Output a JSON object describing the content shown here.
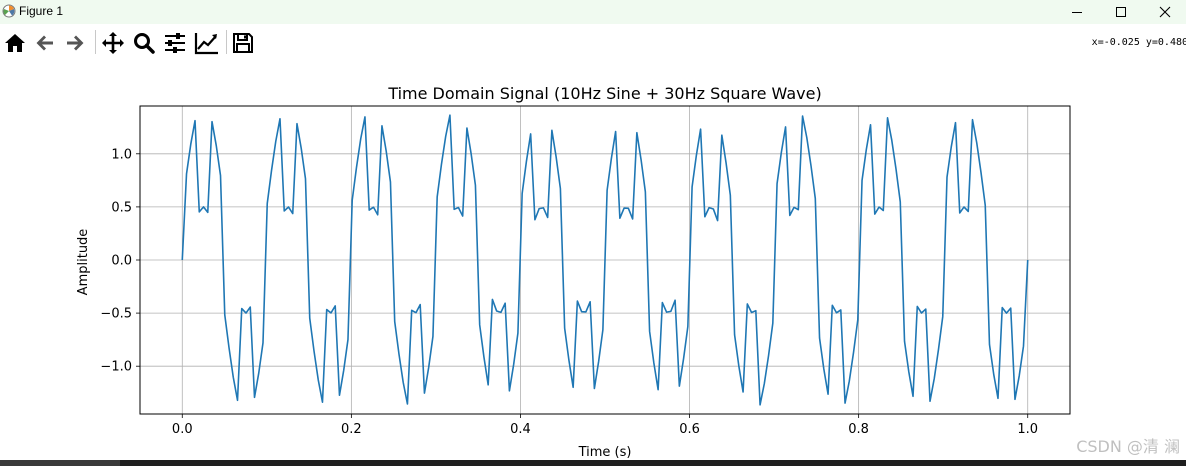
{
  "window": {
    "title": "Figure 1"
  },
  "toolbar": {
    "buttons": [
      {
        "name": "home-icon"
      },
      {
        "name": "back-icon"
      },
      {
        "name": "forward-icon"
      },
      {
        "name": "pan-icon"
      },
      {
        "name": "zoom-icon"
      },
      {
        "name": "configure-subplots-icon"
      },
      {
        "name": "edit-axis-icon"
      },
      {
        "name": "save-icon"
      }
    ],
    "coords": "x=-0.025 y=0.480"
  },
  "watermark": "CSDN @清 澜",
  "chart_data": {
    "type": "line",
    "title": "Time Domain Signal (10Hz Sine + 30Hz Square Wave)",
    "xlabel": "Time (s)",
    "ylabel": "Amplitude",
    "xlim": [
      -0.05,
      1.05
    ],
    "ylim": [
      -1.45,
      1.45
    ],
    "xticks": [
      0.0,
      0.2,
      0.4,
      0.6,
      0.8,
      1.0
    ],
    "xtick_labels": [
      "0.0",
      "0.2",
      "0.4",
      "0.6",
      "0.8",
      "1.0"
    ],
    "yticks": [
      -1.0,
      -0.5,
      0.0,
      0.5,
      1.0
    ],
    "ytick_labels": [
      "−1.0",
      "−0.5",
      "0.0",
      "0.5",
      "1.0"
    ],
    "grid": true,
    "color": "#1f77b4",
    "series": [
      {
        "formula": "sin(2*pi*10*t) + 0.5*sign(sin(2*pi*30*t))",
        "x_start": 0.0,
        "x_end": 1.0,
        "samples": 200
      }
    ]
  }
}
